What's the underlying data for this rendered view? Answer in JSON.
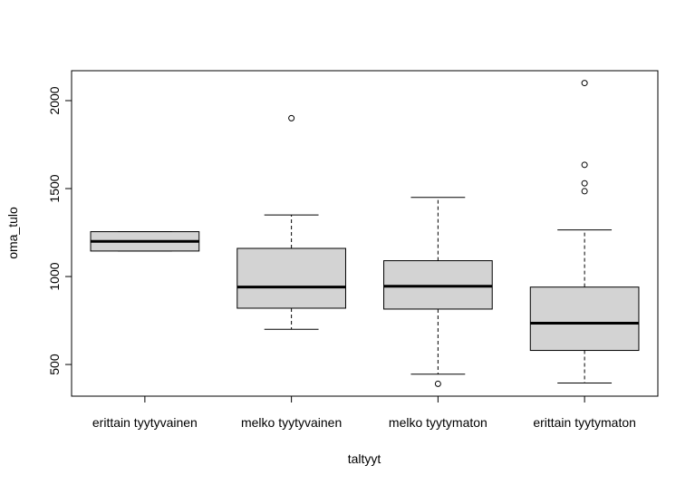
{
  "chart_data": {
    "type": "boxplot",
    "xlabel": "taltyyt",
    "ylabel": "oma_tulo",
    "ylim": [
      320,
      2170
    ],
    "yticks": [
      500,
      1000,
      1500,
      2000
    ],
    "grid": false,
    "box_fill": "#d3d3d3",
    "categories": [
      "erittain tyytyvainen",
      "melko tyytyvainen",
      "melko tyytymaton",
      "erittain tyytymaton"
    ],
    "boxes": [
      {
        "category": "erittain tyytyvainen",
        "whisker_low": 1145,
        "q1": 1145,
        "median": 1200,
        "q3": 1255,
        "whisker_high": 1255,
        "outliers": []
      },
      {
        "category": "melko tyytyvainen",
        "whisker_low": 700,
        "q1": 820,
        "median": 940,
        "q3": 1160,
        "whisker_high": 1350,
        "outliers": [
          1900
        ]
      },
      {
        "category": "melko tyytymaton",
        "whisker_low": 445,
        "q1": 815,
        "median": 945,
        "q3": 1090,
        "whisker_high": 1450,
        "outliers": [
          390
        ]
      },
      {
        "category": "erittain tyytymaton",
        "whisker_low": 395,
        "q1": 580,
        "median": 735,
        "q3": 940,
        "whisker_high": 1265,
        "outliers": [
          1485,
          1530,
          1635,
          2100
        ]
      }
    ]
  }
}
